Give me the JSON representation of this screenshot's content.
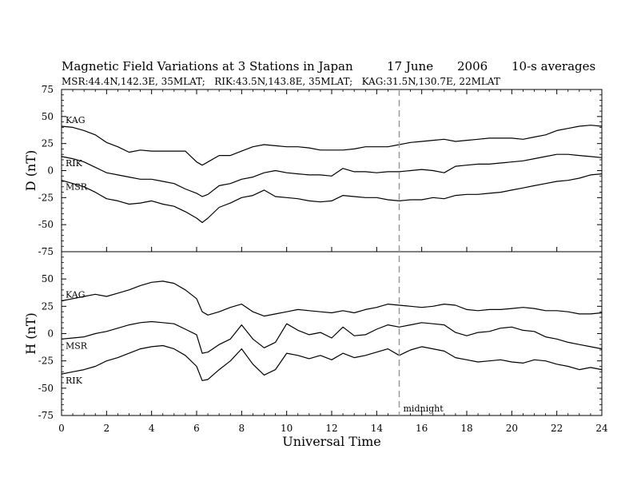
{
  "chart_data": {
    "type": "line",
    "title": "Magnetic Field Variations at 3 Stations in Japan",
    "date_label": "17 June",
    "year_label": "2006",
    "averaging_label": "10-s averages",
    "subtitle": "MSR:44.4N,142.3E, 35MLAT;   RIK:43.5N,143.8E, 35MLAT;   KAG:31.5N,130.7E, 22MLAT",
    "xlabel": "Universal Time",
    "xlim": [
      0,
      24
    ],
    "x_ticks": [
      "0",
      "2",
      "4",
      "6",
      "8",
      "10",
      "12",
      "14",
      "16",
      "18",
      "20",
      "22",
      "24"
    ],
    "marker": {
      "x": 15,
      "label": "midnight",
      "style": "dashed"
    },
    "grid": false,
    "panels": [
      {
        "ylabel": "D (nT)",
        "ylim": [
          -75,
          75
        ],
        "y_ticks": [
          "75",
          "50",
          "25",
          "0",
          "-25",
          "-50",
          "-75"
        ],
        "series": [
          {
            "name": "KAG",
            "x": [
              0,
              0.5,
              1,
              1.5,
              2,
              2.5,
              3,
              3.5,
              4,
              4.5,
              5,
              5.5,
              6,
              6.25,
              6.5,
              7,
              7.5,
              8,
              8.5,
              9,
              9.5,
              10,
              10.5,
              11,
              11.5,
              12,
              12.5,
              13,
              13.5,
              14,
              14.5,
              15,
              15.5,
              16,
              16.5,
              17,
              17.5,
              18,
              18.5,
              19,
              19.5,
              20,
              20.5,
              21,
              21.5,
              22,
              22.5,
              23,
              23.5,
              24
            ],
            "y": [
              41,
              40,
              37,
              33,
              26,
              22,
              17,
              19,
              18,
              18,
              18,
              18,
              8,
              5,
              8,
              14,
              14,
              18,
              22,
              24,
              23,
              22,
              22,
              21,
              19,
              19,
              19,
              20,
              22,
              22,
              22,
              24,
              26,
              27,
              28,
              29,
              27,
              28,
              29,
              30,
              30,
              30,
              29,
              31,
              33,
              37,
              39,
              41,
              42,
              41
            ]
          },
          {
            "name": "RIK",
            "x": [
              0,
              0.5,
              1,
              1.5,
              2,
              2.5,
              3,
              3.5,
              4,
              4.5,
              5,
              5.5,
              6,
              6.25,
              6.5,
              7,
              7.5,
              8,
              8.5,
              9,
              9.5,
              10,
              10.5,
              11,
              11.5,
              12,
              12.5,
              13,
              13.5,
              14,
              14.5,
              15,
              15.5,
              16,
              16.5,
              17,
              17.5,
              18,
              18.5,
              19,
              19.5,
              20,
              20.5,
              21,
              21.5,
              22,
              22.5,
              23,
              23.5,
              24
            ],
            "y": [
              13,
              11,
              8,
              3,
              -2,
              -4,
              -6,
              -8,
              -8,
              -10,
              -12,
              -17,
              -21,
              -24,
              -22,
              -14,
              -12,
              -8,
              -6,
              -2,
              0,
              -2,
              -3,
              -4,
              -4,
              -5,
              2,
              -1,
              -1,
              -2,
              -1,
              -1,
              0,
              1,
              0,
              -2,
              4,
              5,
              6,
              6,
              7,
              8,
              9,
              11,
              13,
              15,
              15,
              14,
              13,
              12
            ]
          },
          {
            "name": "MSR",
            "x": [
              0,
              0.5,
              1,
              1.5,
              2,
              2.5,
              3,
              3.5,
              4,
              4.5,
              5,
              5.5,
              6,
              6.25,
              6.5,
              7,
              7.5,
              8,
              8.5,
              9,
              9.5,
              10,
              10.5,
              11,
              11.5,
              12,
              12.5,
              13,
              13.5,
              14,
              14.5,
              15,
              15.5,
              16,
              16.5,
              17,
              17.5,
              18,
              18.5,
              19,
              19.5,
              20,
              20.5,
              21,
              21.5,
              22,
              22.5,
              23,
              23.5,
              24
            ],
            "y": [
              -9,
              -12,
              -15,
              -20,
              -26,
              -28,
              -31,
              -30,
              -28,
              -31,
              -33,
              -38,
              -44,
              -48,
              -44,
              -34,
              -30,
              -25,
              -23,
              -18,
              -24,
              -25,
              -26,
              -28,
              -29,
              -28,
              -23,
              -24,
              -25,
              -25,
              -27,
              -28,
              -27,
              -27,
              -25,
              -26,
              -23,
              -22,
              -22,
              -21,
              -20,
              -18,
              -16,
              -14,
              -12,
              -10,
              -9,
              -7,
              -4,
              -3
            ]
          }
        ]
      },
      {
        "ylabel": "H (nT)",
        "ylim": [
          -75,
          75
        ],
        "y_ticks": [
          "50",
          "25",
          "0",
          "-25",
          "-50",
          "-75"
        ],
        "series": [
          {
            "name": "KAG",
            "x": [
              0,
              0.5,
              1,
              1.5,
              2,
              2.5,
              3,
              3.5,
              4,
              4.5,
              5,
              5.5,
              6,
              6.25,
              6.5,
              7,
              7.5,
              8,
              8.5,
              9,
              9.5,
              10,
              10.5,
              11,
              11.5,
              12,
              12.5,
              13,
              13.5,
              14,
              14.5,
              15,
              15.5,
              16,
              16.5,
              17,
              17.5,
              18,
              18.5,
              19,
              19.5,
              20,
              20.5,
              21,
              21.5,
              22,
              22.5,
              23,
              23.5,
              24
            ],
            "y": [
              30,
              32,
              34,
              36,
              34,
              37,
              40,
              44,
              47,
              48,
              46,
              40,
              32,
              20,
              17,
              20,
              24,
              27,
              20,
              16,
              18,
              20,
              22,
              21,
              20,
              19,
              21,
              19,
              22,
              24,
              27,
              26,
              25,
              24,
              25,
              27,
              26,
              22,
              21,
              22,
              22,
              23,
              24,
              23,
              21,
              21,
              20,
              18,
              18,
              19
            ]
          },
          {
            "name": "MSR",
            "x": [
              0,
              0.5,
              1,
              1.5,
              2,
              2.5,
              3,
              3.5,
              4,
              4.5,
              5,
              5.5,
              6,
              6.25,
              6.5,
              7,
              7.5,
              8,
              8.5,
              9,
              9.5,
              10,
              10.5,
              11,
              11.5,
              12,
              12.5,
              13,
              13.5,
              14,
              14.5,
              15,
              15.5,
              16,
              16.5,
              17,
              17.5,
              18,
              18.5,
              19,
              19.5,
              20,
              20.5,
              21,
              21.5,
              22,
              22.5,
              23,
              23.5,
              24
            ],
            "y": [
              -5,
              -4,
              -3,
              0,
              2,
              5,
              8,
              10,
              11,
              10,
              9,
              4,
              -1,
              -18,
              -17,
              -10,
              -5,
              8,
              -5,
              -13,
              -8,
              9,
              3,
              -1,
              1,
              -4,
              6,
              -2,
              -1,
              4,
              8,
              6,
              8,
              10,
              9,
              8,
              1,
              -2,
              1,
              2,
              5,
              6,
              3,
              2,
              -3,
              -5,
              -8,
              -10,
              -12,
              -14
            ]
          },
          {
            "name": "RIK",
            "x": [
              0,
              0.5,
              1,
              1.5,
              2,
              2.5,
              3,
              3.5,
              4,
              4.5,
              5,
              5.5,
              6,
              6.25,
              6.5,
              7,
              7.5,
              8,
              8.5,
              9,
              9.5,
              10,
              10.5,
              11,
              11.5,
              12,
              12.5,
              13,
              13.5,
              14,
              14.5,
              15,
              15.5,
              16,
              16.5,
              17,
              17.5,
              18,
              18.5,
              19,
              19.5,
              20,
              20.5,
              21,
              21.5,
              22,
              22.5,
              23,
              23.5,
              24
            ],
            "y": [
              -37,
              -35,
              -33,
              -30,
              -25,
              -22,
              -18,
              -14,
              -12,
              -11,
              -14,
              -20,
              -30,
              -43,
              -42,
              -33,
              -25,
              -14,
              -28,
              -38,
              -33,
              -18,
              -20,
              -23,
              -20,
              -24,
              -18,
              -22,
              -20,
              -17,
              -14,
              -20,
              -15,
              -12,
              -14,
              -16,
              -22,
              -24,
              -26,
              -25,
              -24,
              -26,
              -27,
              -24,
              -25,
              -28,
              -30,
              -33,
              -31,
              -33
            ]
          }
        ]
      }
    ]
  }
}
